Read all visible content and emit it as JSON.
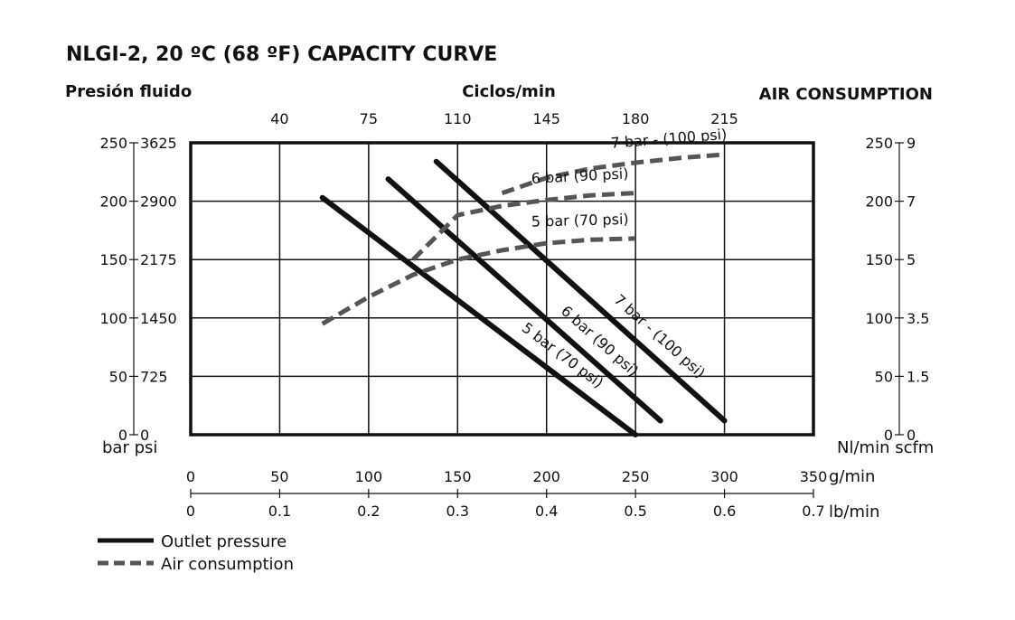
{
  "chart_data": {
    "type": "line",
    "title": "NLGI-2, 20 ºC (68 ºF) CAPACITY CURVE",
    "left_axis_title": "Presión fluido",
    "top_axis_title": "Ciclos/min",
    "right_axis_title": "AIR CONSUMPTION",
    "left_units": "bar psi",
    "right_units": "Nl/min scfm",
    "x_units_primary": "g/min",
    "x_units_secondary": "lb/min",
    "xlim": [
      0,
      350
    ],
    "ylim": [
      0,
      250
    ],
    "x_ticks": [
      "0",
      "50",
      "100",
      "150",
      "200",
      "250",
      "300",
      "350"
    ],
    "x2_ticks": [
      "0",
      "0.1",
      "0.2",
      "0.3",
      "0.4",
      "0.5",
      "0.6",
      "0.7"
    ],
    "top_ticks": [
      "40",
      "75",
      "110",
      "145",
      "180",
      "215"
    ],
    "y_bar_ticks": [
      "0",
      "50",
      "100",
      "150",
      "200",
      "250"
    ],
    "y_psi_ticks": [
      "0",
      "725",
      "1450",
      "2175",
      "2900",
      "3625"
    ],
    "y_right_nl_ticks": [
      "0",
      "50",
      "100",
      "150",
      "200",
      "250"
    ],
    "y_right_scfm_ticks": [
      "0",
      "1.5",
      "3.5",
      "5",
      "7",
      "9"
    ],
    "grid": true,
    "legend_position": "bottom-left",
    "legend": {
      "outlet": "Outlet pressure",
      "air": "Air consumption"
    },
    "series": [
      {
        "name": "5 bar (70 psi)",
        "kind": "outlet",
        "x": [
          74,
          250
        ],
        "y": [
          203,
          0
        ]
      },
      {
        "name": "6 bar (90 psi)",
        "kind": "outlet",
        "x": [
          111,
          264
        ],
        "y": [
          219,
          12
        ]
      },
      {
        "name": "7 bar - (100 psi)",
        "kind": "outlet",
        "x": [
          138,
          300
        ],
        "y": [
          234,
          12
        ]
      },
      {
        "name": "5 bar (70 psi)",
        "kind": "air",
        "x": [
          74,
          100,
          125,
          150,
          175,
          200,
          225,
          250
        ],
        "y": [
          95,
          118,
          137,
          150,
          158,
          164,
          167,
          168
        ]
      },
      {
        "name": "6 bar (90 psi)",
        "kind": "air",
        "x": [
          125,
          150,
          175,
          200,
          225,
          250
        ],
        "y": [
          150,
          188,
          196,
          201,
          205,
          207
        ]
      },
      {
        "name": "7 bar - (100 psi)",
        "kind": "air",
        "x": [
          175,
          200,
          225,
          250,
          275,
          300
        ],
        "y": [
          207,
          220,
          228,
          233,
          237,
          240
        ]
      }
    ]
  }
}
